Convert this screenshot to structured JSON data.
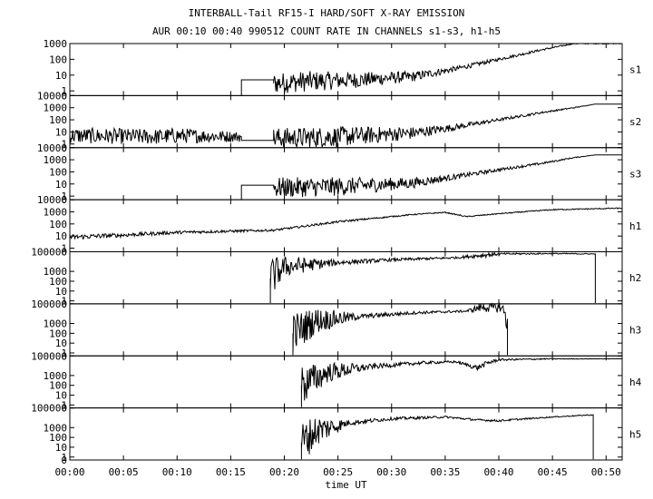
{
  "title": "INTERBALL-Tail RF15-I HARD/SOFT X-RAY EMISSION",
  "subtitle": "AUR 00:10 00:40 990512  COUNT RATE IN CHANNELS s1-s3, h1-h5",
  "chart_data": {
    "type": "line",
    "title": "INTERBALL-Tail RF15-I HARD/SOFT X-RAY EMISSION",
    "subtitle": "AUR 00:10 00:40 990512  COUNT RATE IN CHANNELS s1-s3, h1-h5",
    "xlabel": "time UT",
    "x_tick_labels": [
      "00:00",
      "00:05",
      "00:10",
      "00:15",
      "00:20",
      "00:25",
      "00:30",
      "00:35",
      "00:40",
      "00:45",
      "00:50"
    ],
    "x_tick_minutes": [
      0,
      5,
      10,
      15,
      20,
      25,
      30,
      35,
      40,
      45,
      50
    ],
    "xlim_minutes": [
      0,
      51.5
    ],
    "yscale": "log",
    "grid": false,
    "panels": [
      {
        "name": "s1",
        "ylim_exp": [
          -0.3,
          3
        ],
        "y_tick_labels": [
          "1000",
          "100",
          "10",
          "1",
          "0"
        ],
        "y_tick_values": [
          1000,
          100,
          10,
          1,
          0
        ],
        "segments": [
          {
            "t": [
              16.0,
              16.0,
              19.0,
              19.0,
              22.0,
              27.0,
              32.0,
              36.0,
              40.0,
              44.0,
              47.0,
              51.5
            ],
            "v": [
              0.5,
              5,
              5,
              3,
              4,
              5,
              8,
              25,
              100,
              400,
              1000,
              1000
            ],
            "noise": [
              0,
              0,
              0,
              0.2,
              0.2,
              0.15,
              0.1,
              0.05,
              0.03,
              0.02,
              0.01,
              0.01
            ]
          }
        ]
      },
      {
        "name": "s2",
        "ylim_exp": [
          -0.3,
          4
        ],
        "y_tick_labels": [
          "10000",
          "1000",
          "100",
          "10",
          "1",
          "0"
        ],
        "y_tick_values": [
          10000,
          1000,
          100,
          10,
          1,
          0
        ],
        "segments": [
          {
            "t": [
              0,
              8,
              10,
              16,
              16,
              19,
              19,
              25,
              32,
              36,
              40,
              44,
              47,
              49,
              51.5
            ],
            "v": [
              5,
              4,
              5,
              4,
              2,
              2,
              3,
              4,
              8,
              25,
              100,
              400,
              1000,
              2000,
              2000
            ],
            "noise": [
              0.15,
              0.15,
              0.15,
              0.1,
              0,
              0,
              0.2,
              0.2,
              0.12,
              0.06,
              0.03,
              0.02,
              0.01,
              0,
              0
            ]
          }
        ]
      },
      {
        "name": "s3",
        "ylim_exp": [
          -0.3,
          4
        ],
        "y_tick_labels": [
          "10000",
          "1000",
          "100",
          "10",
          "1",
          "0"
        ],
        "y_tick_values": [
          10000,
          1000,
          100,
          10,
          1,
          0
        ],
        "segments": [
          {
            "t": [
              16.0,
              16.0,
              19.0,
              19.0,
              25.0,
              32.0,
              36.0,
              40.0,
              44.0,
              47.0,
              49.0,
              51.5
            ],
            "v": [
              0.5,
              8,
              8,
              5,
              6,
              12,
              40,
              150,
              500,
              1500,
              2500,
              2500
            ],
            "noise": [
              0,
              0,
              0,
              0.2,
              0.18,
              0.1,
              0.05,
              0.03,
              0.02,
              0.01,
              0,
              0
            ]
          }
        ]
      },
      {
        "name": "h1",
        "ylim_exp": [
          -0.3,
          4
        ],
        "y_tick_labels": [
          "10000",
          "1000",
          "100",
          "10",
          "1",
          "0"
        ],
        "y_tick_values": [
          10000,
          1000,
          100,
          10,
          1,
          0
        ],
        "segments": [
          {
            "t": [
              0,
              5,
              10,
              19,
              25,
              32,
              35,
              37,
              40,
              45,
              51.5
            ],
            "v": [
              8,
              12,
              20,
              30,
              150,
              600,
              900,
              400,
              700,
              1500,
              2000
            ],
            "noise": [
              0.05,
              0.04,
              0.03,
              0.02,
              0.02,
              0.01,
              0.01,
              0.01,
              0.01,
              0.01,
              0.01
            ]
          }
        ]
      },
      {
        "name": "h2",
        "ylim_exp": [
          -0.3,
          5
        ],
        "y_tick_labels": [
          "100000",
          "1000",
          "100",
          "10",
          "1",
          "0"
        ],
        "y_tick_values": [
          100000,
          1000,
          100,
          10,
          1,
          0
        ],
        "segments": [
          {
            "t": [
              18.7,
              18.7,
              20.0,
              25.0,
              30.0,
              36.0,
              39.0,
              40.0,
              45.0,
              49.0,
              49.0
            ],
            "v": [
              0.6,
              200,
              3000,
              8000,
              15000,
              25000,
              50000,
              60000,
              65000,
              60000,
              0.6
            ],
            "noise": [
              0,
              0.4,
              0.2,
              0.05,
              0.03,
              0.02,
              0.05,
              0.02,
              0.01,
              0.01,
              0
            ]
          }
        ]
      },
      {
        "name": "h3",
        "ylim_exp": [
          -0.3,
          5
        ],
        "y_tick_labels": [
          "100000",
          "1000",
          "100",
          "10",
          "1",
          "0"
        ],
        "y_tick_values": [
          100000,
          1000,
          100,
          10,
          1,
          0
        ],
        "segments": [
          {
            "t": [
              20.8,
              20.8,
              23.0,
              27.0,
              32.0,
              37.0,
              38.5,
              39.5,
              40.2,
              40.8,
              40.8
            ],
            "v": [
              0.6,
              100,
              2000,
              5000,
              12000,
              18000,
              50000,
              40000,
              50000,
              3000,
              0.6
            ],
            "noise": [
              0,
              0.4,
              0.25,
              0.05,
              0.03,
              0.02,
              0.1,
              0.1,
              0.1,
              0.3,
              0
            ]
          }
        ]
      },
      {
        "name": "h4",
        "ylim_exp": [
          -0.3,
          5
        ],
        "y_tick_labels": [
          "100000",
          "1000",
          "100",
          "10",
          "1",
          "0"
        ],
        "y_tick_values": [
          100000,
          1000,
          100,
          10,
          1,
          0
        ],
        "segments": [
          {
            "t": [
              21.6,
              21.6,
              24.0,
              28.0,
              33.0,
              36.0,
              38.0,
              39.0,
              40.0,
              45.0,
              51.5
            ],
            "v": [
              0.6,
              100,
              2000,
              8000,
              20000,
              25000,
              6000,
              20000,
              40000,
              50000,
              50000
            ],
            "noise": [
              0,
              0.4,
              0.2,
              0.05,
              0.03,
              0.02,
              0.05,
              0.05,
              0.02,
              0.01,
              0
            ]
          }
        ]
      },
      {
        "name": "h5",
        "ylim_exp": [
          -0.3,
          5
        ],
        "y_tick_labels": [
          "100000",
          "1000",
          "100",
          "10",
          "1",
          "0"
        ],
        "y_tick_values": [
          100000,
          1000,
          100,
          10,
          1,
          0
        ],
        "segments": [
          {
            "t": [
              21.6,
              21.6,
              23.0,
              26.0,
              30.0,
              35.0,
              38.0,
              40.0,
              45.0,
              48.8,
              48.8
            ],
            "v": [
              0.6,
              30,
              500,
              3000,
              8000,
              12000,
              6000,
              5000,
              12000,
              20000,
              0.6
            ],
            "noise": [
              0,
              0.4,
              0.3,
              0.05,
              0.03,
              0.02,
              0.02,
              0.02,
              0.01,
              0.01,
              0
            ]
          }
        ]
      }
    ]
  }
}
